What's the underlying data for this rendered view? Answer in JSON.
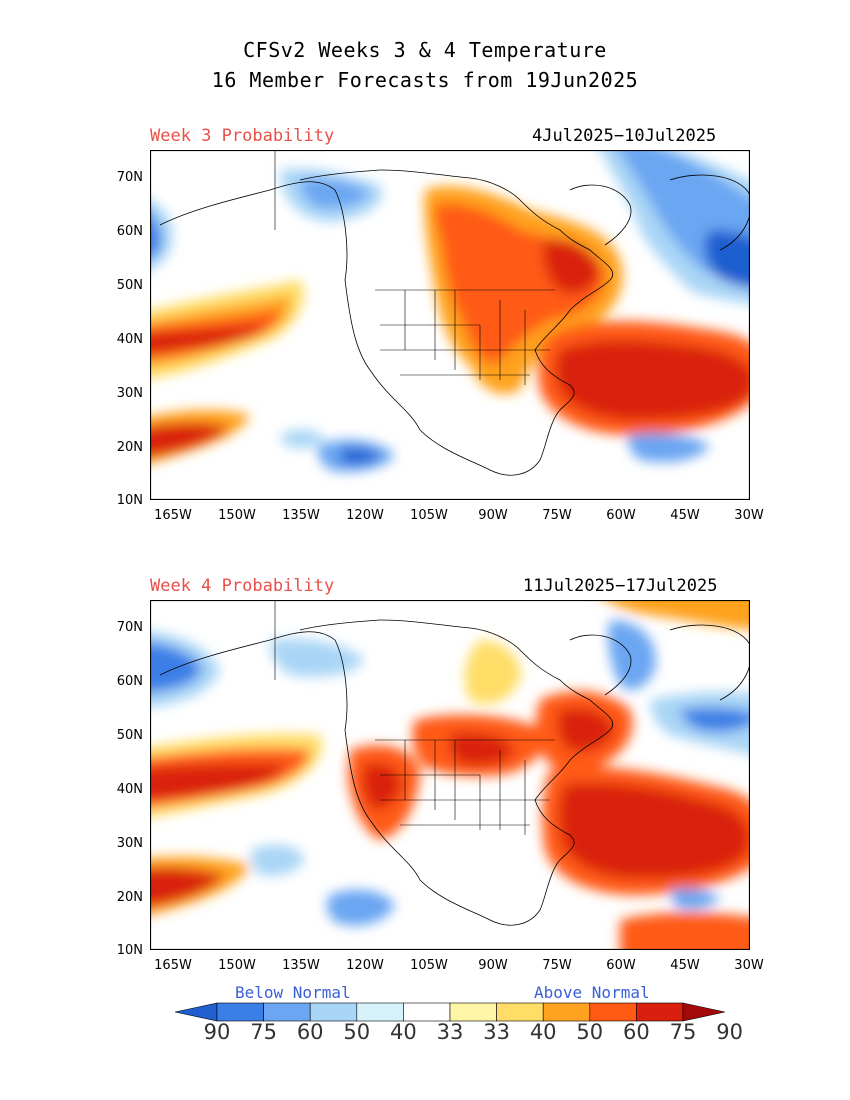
{
  "header": {
    "title_line1": "CFSv2 Weeks 3 & 4 Temperature",
    "title_line2": "16 Member Forecasts from 19Jun2025"
  },
  "panels": [
    {
      "id": "week3",
      "label": "Week 3 Probability",
      "date_range": "4Jul2025−10Jul2025"
    },
    {
      "id": "week4",
      "label": "Week 4 Probability",
      "date_range": "11Jul2025−17Jul2025"
    }
  ],
  "axes": {
    "lat_labels": [
      "70N",
      "60N",
      "50N",
      "40N",
      "30N",
      "20N",
      "10N"
    ],
    "lon_labels": [
      "165W",
      "150W",
      "135W",
      "120W",
      "105W",
      "90W",
      "75W",
      "60W",
      "45W",
      "30W"
    ]
  },
  "colorbar": {
    "below_label": "Below Normal",
    "above_label": "Above Normal",
    "tick_labels": [
      "90",
      "75",
      "60",
      "50",
      "40",
      "33",
      "33",
      "40",
      "50",
      "60",
      "75",
      "90"
    ],
    "colors": [
      "#1f5fd0",
      "#3a7fe6",
      "#6aa6f2",
      "#a9d5f6",
      "#d6f2fb",
      "#ffffff",
      "#fff5a6",
      "#ffdd66",
      "#ffa21f",
      "#ff5a14",
      "#d9200f",
      "#a50a0a"
    ]
  },
  "colors": {
    "label_red": "#e8504a",
    "label_blue": "#3a5fd6"
  }
}
